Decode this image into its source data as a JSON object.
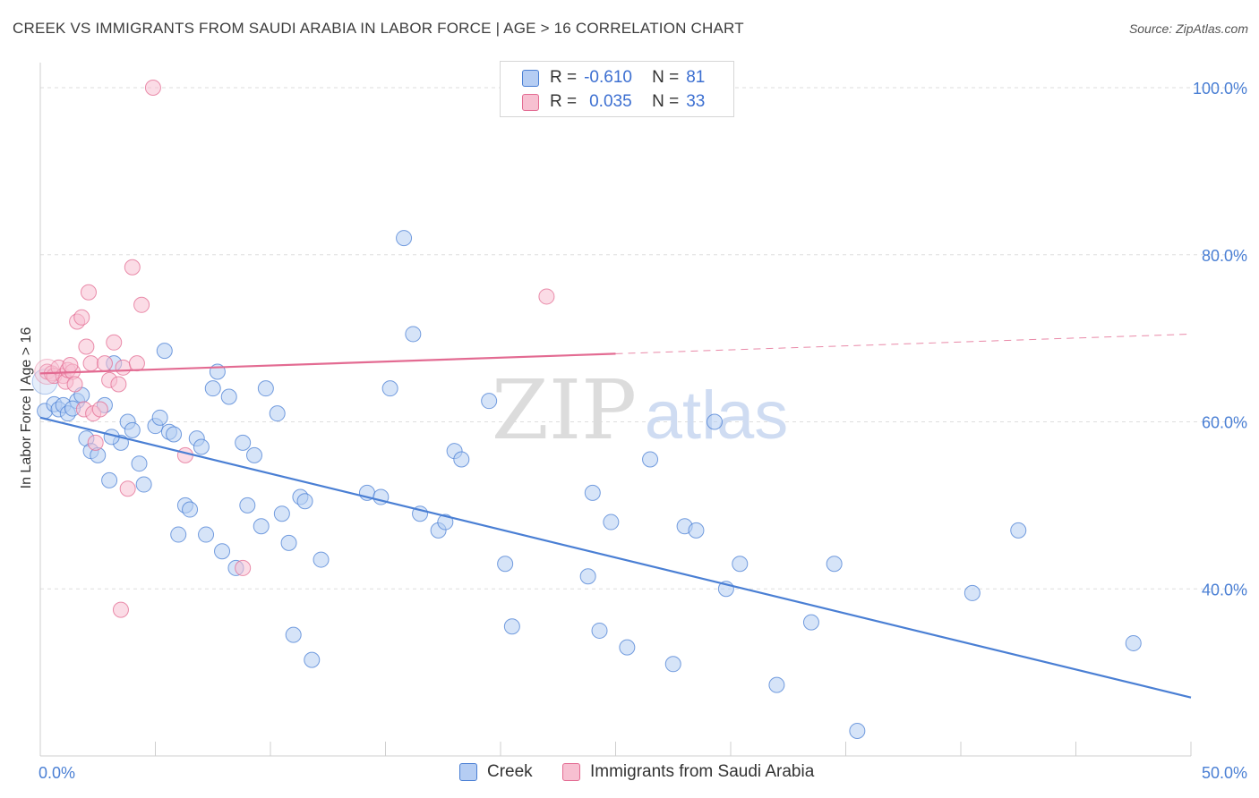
{
  "title": "CREEK VS IMMIGRANTS FROM SAUDI ARABIA IN LABOR FORCE | AGE > 16 CORRELATION CHART",
  "source": "Source: ZipAtlas.com",
  "watermark": {
    "zip": "ZIP",
    "atlas": "atlas"
  },
  "legend": {
    "r_label": "R =",
    "n_label": "N =",
    "series": [
      {
        "name": "Creek",
        "r": "-0.610",
        "n": "81",
        "color": "#4a7fd4",
        "fill": "#b5cdf3"
      },
      {
        "name": "Immigrants from Saudi Arabia",
        "r": "0.035",
        "n": "33",
        "color": "#e36b92",
        "fill": "#f7c0d1"
      }
    ]
  },
  "chart_data": {
    "type": "scatter",
    "ylabel": "In Labor Force | Age > 16",
    "xlim": [
      0,
      50
    ],
    "ylim": [
      20,
      103
    ],
    "x_tick_labels": {
      "min": "0.0%",
      "max": "50.0%"
    },
    "y_ticks": [
      {
        "value": 100,
        "label": "100.0%"
      },
      {
        "value": 80,
        "label": "80.0%"
      },
      {
        "value": 60,
        "label": "60.0%"
      },
      {
        "value": 40,
        "label": "40.0%"
      }
    ],
    "grid": true,
    "legend_position": "top-center",
    "series": [
      {
        "name": "Creek",
        "color": "#4a7fd4",
        "fill": "#b5cdf3",
        "trend": {
          "x": [
            0,
            50
          ],
          "y": [
            60.5,
            27.0
          ],
          "dashed_from": null
        },
        "points": [
          [
            0.2,
            61.3
          ],
          [
            0.6,
            62.1
          ],
          [
            0.8,
            61.5
          ],
          [
            1.0,
            62.0
          ],
          [
            1.2,
            61.0
          ],
          [
            1.6,
            62.5
          ],
          [
            1.8,
            63.2
          ],
          [
            2.0,
            58.0
          ],
          [
            2.2,
            56.5
          ],
          [
            2.5,
            56.0
          ],
          [
            2.8,
            62.0
          ],
          [
            3.0,
            53.0
          ],
          [
            3.2,
            67.0
          ],
          [
            3.5,
            57.5
          ],
          [
            3.8,
            60.0
          ],
          [
            4.0,
            59.0
          ],
          [
            4.3,
            55.0
          ],
          [
            4.5,
            52.5
          ],
          [
            5.0,
            59.5
          ],
          [
            5.2,
            60.5
          ],
          [
            5.4,
            68.5
          ],
          [
            5.6,
            58.8
          ],
          [
            5.8,
            58.5
          ],
          [
            6.0,
            46.5
          ],
          [
            6.3,
            50.0
          ],
          [
            6.5,
            49.5
          ],
          [
            6.8,
            58.0
          ],
          [
            7.0,
            57.0
          ],
          [
            7.2,
            46.5
          ],
          [
            7.5,
            64.0
          ],
          [
            7.7,
            66.0
          ],
          [
            7.9,
            44.5
          ],
          [
            8.2,
            63.0
          ],
          [
            8.5,
            42.5
          ],
          [
            8.8,
            57.5
          ],
          [
            9.0,
            50.0
          ],
          [
            9.3,
            56.0
          ],
          [
            9.6,
            47.5
          ],
          [
            9.8,
            64.0
          ],
          [
            10.3,
            61.0
          ],
          [
            10.5,
            49.0
          ],
          [
            10.8,
            45.5
          ],
          [
            11.0,
            34.5
          ],
          [
            11.3,
            51.0
          ],
          [
            11.5,
            50.5
          ],
          [
            11.8,
            31.5
          ],
          [
            12.2,
            43.5
          ],
          [
            14.2,
            51.5
          ],
          [
            14.8,
            51.0
          ],
          [
            15.2,
            64.0
          ],
          [
            15.8,
            82.0
          ],
          [
            16.2,
            70.5
          ],
          [
            16.5,
            49.0
          ],
          [
            17.3,
            47.0
          ],
          [
            17.6,
            48.0
          ],
          [
            18.0,
            56.5
          ],
          [
            18.3,
            55.5
          ],
          [
            19.5,
            62.5
          ],
          [
            20.2,
            43.0
          ],
          [
            20.5,
            35.5
          ],
          [
            23.8,
            41.5
          ],
          [
            24.0,
            51.5
          ],
          [
            24.8,
            48.0
          ],
          [
            24.3,
            35.0
          ],
          [
            25.5,
            33.0
          ],
          [
            26.5,
            55.5
          ],
          [
            27.5,
            31.0
          ],
          [
            28.0,
            47.5
          ],
          [
            28.5,
            47.0
          ],
          [
            29.3,
            60.0
          ],
          [
            29.8,
            40.0
          ],
          [
            30.4,
            43.0
          ],
          [
            32.0,
            28.5
          ],
          [
            33.5,
            36.0
          ],
          [
            34.5,
            43.0
          ],
          [
            35.5,
            23.0
          ],
          [
            40.5,
            39.5
          ],
          [
            42.5,
            47.0
          ],
          [
            47.5,
            33.5
          ],
          [
            1.4,
            61.6
          ],
          [
            3.1,
            58.2
          ]
        ]
      },
      {
        "name": "Immigrants from Saudi Arabia",
        "color": "#e36b92",
        "fill": "#f7c0d1",
        "trend": {
          "x": [
            0,
            50
          ],
          "y": [
            65.8,
            70.5
          ],
          "dashed_from": 25
        },
        "points": [
          [
            0.3,
            66.0
          ],
          [
            0.5,
            65.8
          ],
          [
            0.6,
            65.5
          ],
          [
            0.8,
            66.5
          ],
          [
            1.0,
            65.5
          ],
          [
            1.1,
            64.8
          ],
          [
            1.2,
            66.2
          ],
          [
            1.4,
            66.0
          ],
          [
            1.5,
            64.5
          ],
          [
            1.6,
            72.0
          ],
          [
            1.8,
            72.5
          ],
          [
            1.9,
            61.5
          ],
          [
            2.0,
            69.0
          ],
          [
            2.1,
            75.5
          ],
          [
            2.2,
            67.0
          ],
          [
            2.3,
            61.0
          ],
          [
            2.4,
            57.5
          ],
          [
            2.6,
            61.5
          ],
          [
            2.8,
            67.0
          ],
          [
            3.0,
            65.0
          ],
          [
            3.2,
            69.5
          ],
          [
            3.4,
            64.5
          ],
          [
            3.5,
            37.5
          ],
          [
            3.6,
            66.5
          ],
          [
            3.8,
            52.0
          ],
          [
            4.0,
            78.5
          ],
          [
            4.2,
            67.0
          ],
          [
            4.4,
            74.0
          ],
          [
            4.9,
            100.0
          ],
          [
            6.3,
            56.0
          ],
          [
            8.8,
            42.5
          ],
          [
            22.0,
            75.0
          ],
          [
            1.3,
            66.8
          ]
        ]
      }
    ]
  }
}
